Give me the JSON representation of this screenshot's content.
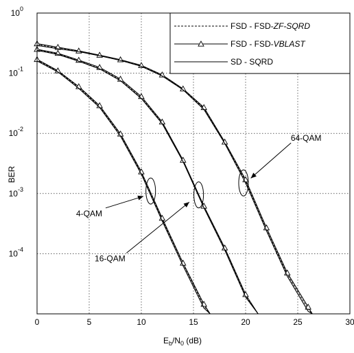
{
  "chart_data": {
    "type": "line",
    "xlabel": {
      "main": "E",
      "sub1": "b",
      "mid": "/N",
      "sub2": "0",
      "unit": " (dB)"
    },
    "ylabel": "BER",
    "x_ticks": [
      0,
      5,
      10,
      15,
      20,
      25,
      30
    ],
    "y_ticks": [
      {
        "value": 1,
        "base": "10",
        "exp": "0"
      },
      {
        "value": 0.1,
        "base": "10",
        "exp": "-1"
      },
      {
        "value": 0.01,
        "base": "10",
        "exp": "-2"
      },
      {
        "value": 0.001,
        "base": "10",
        "exp": "-3"
      },
      {
        "value": 0.0001,
        "base": "10",
        "exp": "-4"
      }
    ],
    "xlim": [
      0,
      30
    ],
    "ylim": [
      1e-05,
      1
    ],
    "yscale": "log",
    "grid": true,
    "legend_position": "top-right",
    "legend": [
      {
        "label_plain": "FSD - FSD-",
        "label_italic": "ZF-SQRD",
        "style": "dashed",
        "marker": "none"
      },
      {
        "label_plain": "FSD - FSD-",
        "label_italic": "VBLAST",
        "style": "solid",
        "marker": "triangle"
      },
      {
        "label_plain": "SD - SQRD",
        "label_italic": "",
        "style": "solid",
        "marker": "none"
      }
    ],
    "groups": [
      {
        "name": "4-QAM",
        "x": [
          0,
          2,
          4,
          6,
          8,
          10,
          12,
          14,
          16,
          16.6
        ],
        "series": [
          {
            "name": "FSD - FSD-ZF-SQRD",
            "style": "dashed",
            "y": [
              0.165,
              0.108,
              0.058,
              0.028,
              0.0095,
              0.0022,
              0.00037,
              6.8e-05,
              1.35e-05,
              1e-05
            ]
          },
          {
            "name": "FSD - FSD-VBLAST",
            "style": "solid",
            "marker": "triangle",
            "y": [
              0.17,
              0.11,
              0.06,
              0.029,
              0.0098,
              0.0023,
              0.00039,
              7e-05,
              1.45e-05,
              1e-05
            ]
          },
          {
            "name": "SD - SQRD",
            "style": "solid",
            "y": [
              0.16,
              0.105,
              0.056,
              0.027,
              0.009,
              0.0021,
              0.00035,
              6.3e-05,
              1.25e-05,
              1e-05
            ]
          }
        ]
      },
      {
        "name": "16-QAM",
        "x": [
          0,
          2,
          4,
          6,
          8,
          10,
          12,
          14,
          16,
          18,
          20,
          21.2
        ],
        "series": [
          {
            "name": "FSD - FSD-ZF-SQRD",
            "style": "dashed",
            "y": [
              0.245,
              0.21,
              0.16,
              0.12,
              0.077,
              0.039,
              0.015,
              0.0035,
              0.0006,
              0.00012,
              2e-05,
              1e-05
            ]
          },
          {
            "name": "FSD - FSD-VBLAST",
            "style": "solid",
            "marker": "triangle",
            "y": [
              0.25,
              0.215,
              0.165,
              0.125,
              0.08,
              0.041,
              0.0155,
              0.0036,
              0.00062,
              0.000125,
              2.1e-05,
              1e-05
            ]
          },
          {
            "name": "SD - SQRD",
            "style": "solid",
            "y": [
              0.24,
              0.205,
              0.158,
              0.118,
              0.075,
              0.038,
              0.0145,
              0.0034,
              0.00058,
              0.000115,
              1.9e-05,
              1e-05
            ]
          }
        ]
      },
      {
        "name": "64-QAM",
        "x": [
          0,
          2,
          4,
          6,
          8,
          10,
          12,
          14,
          16,
          18,
          20,
          22,
          24,
          26,
          26.4
        ],
        "series": [
          {
            "name": "FSD - FSD-ZF-SQRD",
            "style": "dashed",
            "y": [
              0.3,
              0.26,
              0.232,
              0.198,
              0.165,
              0.132,
              0.092,
              0.054,
              0.026,
              0.007,
              0.0016,
              0.00025,
              4.5e-05,
              1.2e-05,
              1e-05
            ]
          },
          {
            "name": "FSD - FSD-VBLAST",
            "style": "solid",
            "marker": "triangle",
            "y": [
              0.31,
              0.27,
              0.235,
              0.2,
              0.168,
              0.135,
              0.094,
              0.055,
              0.027,
              0.0072,
              0.0017,
              0.00027,
              4.8e-05,
              1.3e-05,
              1e-05
            ]
          },
          {
            "name": "SD - SQRD",
            "style": "solid",
            "y": [
              0.29,
              0.255,
              0.228,
              0.195,
              0.163,
              0.13,
              0.09,
              0.053,
              0.025,
              0.0068,
              0.0015,
              0.00024,
              4.2e-05,
              1.1e-05,
              1e-05
            ]
          }
        ]
      }
    ],
    "annotations": [
      {
        "text": "4-QAM",
        "text_x": 5.0,
        "text_y": 0.00042,
        "arrow_to_x": 10.2,
        "arrow_to_y": 0.0009,
        "ellipse_x": 10.9,
        "ellipse_y": 0.0011
      },
      {
        "text": "16-QAM",
        "text_x": 7.0,
        "text_y": 7.5e-05,
        "arrow_to_x": 14.6,
        "arrow_to_y": 0.00072,
        "ellipse_x": 15.5,
        "ellipse_y": 0.00095
      },
      {
        "text": "64-QAM",
        "text_x": 25.8,
        "text_y": 0.0075,
        "arrow_to_x": 20.5,
        "arrow_to_y": 0.0018,
        "ellipse_x": 19.8,
        "ellipse_y": 0.0015
      }
    ]
  }
}
